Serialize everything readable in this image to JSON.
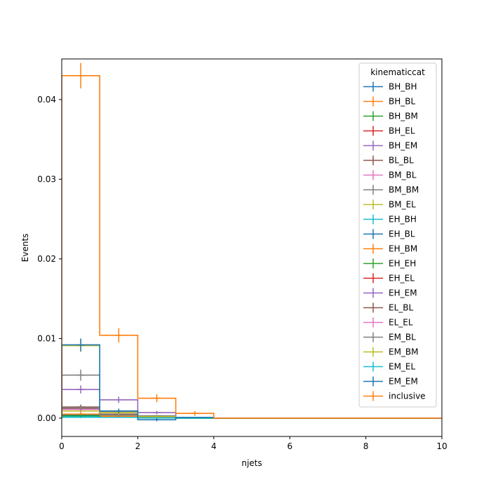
{
  "chart_data": {
    "type": "step-histogram",
    "title": "",
    "xlabel": "njets",
    "ylabel": "Events",
    "xlim": [
      0,
      10
    ],
    "ylim": [
      -0.0023,
      0.0451
    ],
    "x_ticks": [
      0,
      2,
      4,
      6,
      8,
      10
    ],
    "x_tick_labels": [
      "0",
      "2",
      "4",
      "6",
      "8",
      "10"
    ],
    "y_ticks": [
      0.0,
      0.01,
      0.02,
      0.03,
      0.04
    ],
    "y_tick_labels": [
      "0.00",
      "0.01",
      "0.02",
      "0.03",
      "0.04"
    ],
    "bin_edges": [
      0,
      1,
      2,
      3,
      4,
      5,
      6,
      7,
      8,
      9,
      10
    ],
    "grid": false,
    "legend": {
      "title": "kinematiccat",
      "placement": "top-right"
    },
    "series": [
      {
        "name": "BH_BH",
        "color": "#1f77b4",
        "values": [
          0.0002,
          0.0001,
          5e-05,
          0,
          0,
          0,
          0,
          0,
          0,
          0
        ],
        "errors": [
          0.0001,
          5e-05,
          3e-05,
          0,
          0,
          0,
          0,
          0,
          0,
          0
        ]
      },
      {
        "name": "BH_BL",
        "color": "#ff7f0e",
        "values": [
          0.0004,
          0.0001,
          5e-05,
          0,
          0,
          0,
          0,
          0,
          0,
          0
        ],
        "errors": [
          0.0002,
          5e-05,
          3e-05,
          0,
          0,
          0,
          0,
          0,
          0,
          0
        ]
      },
      {
        "name": "BH_BM",
        "color": "#2ca02c",
        "values": [
          0.0003,
          0.0001,
          5e-05,
          0,
          0,
          0,
          0,
          0,
          0,
          0
        ],
        "errors": [
          0.00015,
          5e-05,
          3e-05,
          0,
          0,
          0,
          0,
          0,
          0,
          0
        ]
      },
      {
        "name": "BH_EL",
        "color": "#d62728",
        "values": [
          0.0003,
          0.0001,
          4e-05,
          0,
          0,
          0,
          0,
          0,
          0,
          0
        ],
        "errors": [
          0.00015,
          5e-05,
          3e-05,
          0,
          0,
          0,
          0,
          0,
          0,
          0
        ]
      },
      {
        "name": "BH_EM",
        "color": "#9467bd",
        "values": [
          0.0003,
          0.0001,
          4e-05,
          0,
          0,
          0,
          0,
          0,
          0,
          0
        ],
        "errors": [
          0.00015,
          5e-05,
          3e-05,
          0,
          0,
          0,
          0,
          0,
          0,
          0
        ]
      },
      {
        "name": "BL_BL",
        "color": "#8c564b",
        "values": [
          0.0014,
          0.0005,
          0.0002,
          5e-05,
          0,
          0,
          0,
          0,
          0,
          0
        ],
        "errors": [
          0.0003,
          0.0002,
          0.0001,
          3e-05,
          0,
          0,
          0,
          0,
          0,
          0
        ]
      },
      {
        "name": "BM_BL",
        "color": "#e377c2",
        "values": [
          0.0012,
          0.0004,
          0.0002,
          5e-05,
          0,
          0,
          0,
          0,
          0,
          0
        ],
        "errors": [
          0.0003,
          0.0002,
          0.0001,
          3e-05,
          0,
          0,
          0,
          0,
          0,
          0
        ]
      },
      {
        "name": "BM_BM",
        "color": "#7f7f7f",
        "values": [
          0.0054,
          0.0008,
          0.0003,
          5e-05,
          0,
          0,
          0,
          0,
          0,
          0
        ],
        "errors": [
          0.0007,
          0.0003,
          0.0001,
          3e-05,
          0,
          0,
          0,
          0,
          0,
          0
        ]
      },
      {
        "name": "BM_EL",
        "color": "#bcbd22",
        "values": [
          0.0009,
          0.0003,
          0.0001,
          3e-05,
          0,
          0,
          0,
          0,
          0,
          0
        ],
        "errors": [
          0.0003,
          0.0001,
          5e-05,
          2e-05,
          0,
          0,
          0,
          0,
          0,
          0
        ]
      },
      {
        "name": "EH_BH",
        "color": "#17becf",
        "values": [
          0.0002,
          0.0001,
          4e-05,
          0,
          0,
          0,
          0,
          0,
          0,
          0
        ],
        "errors": [
          0.0001,
          5e-05,
          3e-05,
          0,
          0,
          0,
          0,
          0,
          0,
          0
        ]
      },
      {
        "name": "EH_BL",
        "color": "#1f77b4",
        "values": [
          0.0004,
          0.0001,
          5e-05,
          0,
          0,
          0,
          0,
          0,
          0,
          0
        ],
        "errors": [
          0.0002,
          5e-05,
          3e-05,
          0,
          0,
          0,
          0,
          0,
          0,
          0
        ]
      },
      {
        "name": "EH_BM",
        "color": "#ff7f0e",
        "values": [
          0.0005,
          0.0002,
          5e-05,
          0,
          0,
          0,
          0,
          0,
          0,
          0
        ],
        "errors": [
          0.0002,
          0.0001,
          3e-05,
          0,
          0,
          0,
          0,
          0,
          0,
          0
        ]
      },
      {
        "name": "EH_EH",
        "color": "#2ca02c",
        "values": [
          0.0003,
          0.0001,
          4e-05,
          0,
          0,
          0,
          0,
          0,
          0,
          0
        ],
        "errors": [
          0.00015,
          5e-05,
          3e-05,
          0,
          0,
          0,
          0,
          0,
          0,
          0
        ]
      },
      {
        "name": "EH_EL",
        "color": "#d62728",
        "values": [
          0.0013,
          0.0004,
          0.0001,
          4e-05,
          0,
          0,
          0,
          0,
          0,
          0
        ],
        "errors": [
          0.0003,
          0.0002,
          5e-05,
          2e-05,
          0,
          0,
          0,
          0,
          0,
          0
        ]
      },
      {
        "name": "EH_EM",
        "color": "#9467bd",
        "values": [
          0.0036,
          0.0023,
          0.0007,
          0.0001,
          0,
          0,
          0,
          0,
          0,
          0
        ],
        "errors": [
          0.0005,
          0.0004,
          0.0002,
          5e-05,
          0,
          0,
          0,
          0,
          0,
          0
        ]
      },
      {
        "name": "EL_BL",
        "color": "#8c564b",
        "values": [
          0.0012,
          0.0004,
          0.0001,
          4e-05,
          0,
          0,
          0,
          0,
          0,
          0
        ],
        "errors": [
          0.0003,
          0.0002,
          5e-05,
          2e-05,
          0,
          0,
          0,
          0,
          0,
          0
        ]
      },
      {
        "name": "EL_EL",
        "color": "#e377c2",
        "values": [
          0.0011,
          0.0004,
          0.0001,
          3e-05,
          0,
          0,
          0,
          0,
          0,
          0
        ],
        "errors": [
          0.0003,
          0.0002,
          5e-05,
          2e-05,
          0,
          0,
          0,
          0,
          0,
          0
        ]
      },
      {
        "name": "EM_BL",
        "color": "#7f7f7f",
        "values": [
          0.0013,
          0.0004,
          0.0001,
          3e-05,
          0,
          0,
          0,
          0,
          0,
          0
        ],
        "errors": [
          0.0003,
          0.0002,
          5e-05,
          2e-05,
          0,
          0,
          0,
          0,
          0,
          0
        ]
      },
      {
        "name": "EM_BM",
        "color": "#bcbd22",
        "values": [
          0.0091,
          0.0007,
          0.0002,
          5e-05,
          0,
          0,
          0,
          0,
          0,
          0
        ],
        "errors": [
          0.0008,
          0.0003,
          0.0001,
          3e-05,
          0,
          0,
          0,
          0,
          0,
          0
        ]
      },
      {
        "name": "EM_EL",
        "color": "#17becf",
        "values": [
          0.0001,
          0.0001,
          3e-05,
          0,
          0,
          0,
          0,
          0,
          0,
          0
        ],
        "errors": [
          0.0001,
          5e-05,
          2e-05,
          0,
          0,
          0,
          0,
          0,
          0,
          0
        ]
      },
      {
        "name": "EM_EM",
        "color": "#1f77b4",
        "values": [
          0.0092,
          0.0009,
          -0.0002,
          0.0001,
          0,
          0,
          0,
          0,
          0,
          0
        ],
        "errors": [
          0.0008,
          0.0003,
          0.0002,
          5e-05,
          0,
          0,
          0,
          0,
          0,
          0
        ]
      },
      {
        "name": "inclusive",
        "color": "#ff7f0e",
        "values": [
          0.043,
          0.0104,
          0.0025,
          0.0006,
          0,
          0,
          0,
          0,
          0,
          0
        ],
        "errors": [
          0.0016,
          0.0009,
          0.0005,
          0.0003,
          0,
          0,
          0,
          0,
          0,
          0
        ]
      }
    ]
  }
}
